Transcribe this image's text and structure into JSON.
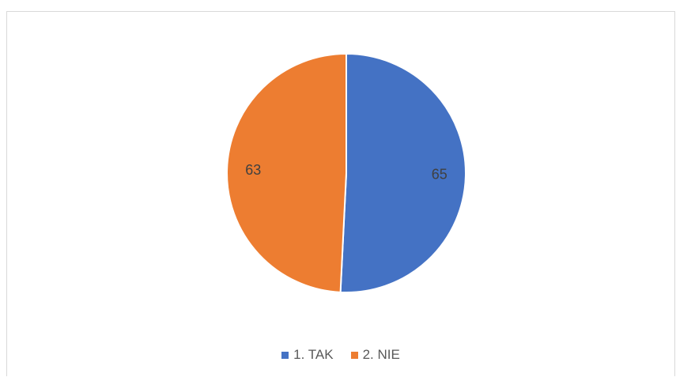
{
  "chart_data": {
    "type": "pie",
    "title": "",
    "categories": [
      "1. TAK",
      "2. NIE"
    ],
    "values": [
      65,
      63
    ],
    "colors": [
      "#4472c4",
      "#ed7d31"
    ],
    "data_labels": [
      "65",
      "63"
    ],
    "start_angle_deg": 0,
    "legend_position": "bottom"
  }
}
